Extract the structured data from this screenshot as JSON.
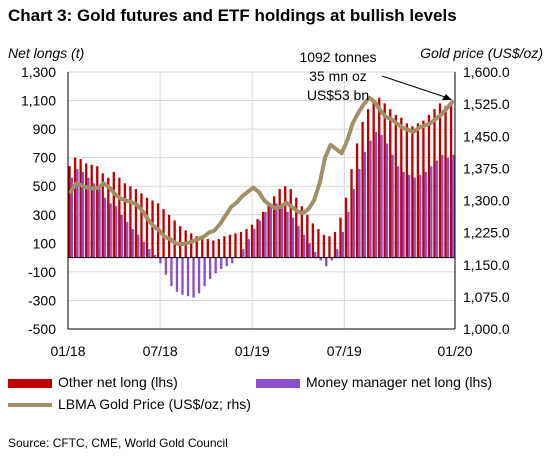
{
  "title": "Chart 3: Gold futures and ETF holdings at bullish levels",
  "source": "Source: CFTC, CME, World Gold Council",
  "colors": {
    "other_net_long": "#c00000",
    "money_manager": "#8a4fc9",
    "gold_price": "#a38f67",
    "grid": "#d6d6d6"
  },
  "chart_data": {
    "type": "bar",
    "title": "Chart 3: Gold futures and ETF holdings at bullish levels",
    "ylabel": "Net longs (t)",
    "y2label": "Gold price (US$/oz)",
    "ylim": [
      -500,
      1300
    ],
    "y2lim": [
      1000,
      1600
    ],
    "yticks": [
      "1,300",
      "1,100",
      "900",
      "700",
      "500",
      "300",
      "100",
      "-100",
      "-300",
      "-500"
    ],
    "y2ticks": [
      "1,600.0",
      "1,525.0",
      "1,450.0",
      "1,375.0",
      "1,300.0",
      "1,225.0",
      "1,150.0",
      "1,075.0",
      "1,000.0"
    ],
    "xticks": [
      "01/18",
      "07/18",
      "01/19",
      "07/19",
      "01/20"
    ],
    "x_start": "2018-01-01",
    "x_end": "2020-01-31",
    "grid": true,
    "annotation": [
      "1092 tonnes",
      "35 mn oz",
      "US$53 bn"
    ],
    "legend": {
      "other": "Other net long (lhs)",
      "mm": "Money manager net long (lhs)",
      "gold": "LBMA Gold Price (US$/oz; rhs)"
    },
    "series": [
      {
        "name": "Other net long (lhs)",
        "values": [
          640,
          700,
          690,
          660,
          650,
          640,
          590,
          560,
          600,
          560,
          520,
          500,
          480,
          450,
          420,
          400,
          380,
          340,
          300,
          260,
          220,
          190,
          170,
          150,
          140,
          130,
          120,
          130,
          150,
          160,
          170,
          180,
          200,
          230,
          270,
          320,
          370,
          430,
          480,
          500,
          480,
          420,
          360,
          300,
          240,
          200,
          160,
          150,
          180,
          280,
          420,
          620,
          800,
          950,
          1040,
          1100,
          1120,
          1080,
          1040,
          1000,
          980,
          940,
          920,
          940,
          960,
          1000,
          1040,
          1080,
          1060,
          1092
        ]
      },
      {
        "name": "Money manager net long (lhs)",
        "values": [
          560,
          620,
          600,
          560,
          520,
          480,
          420,
          380,
          360,
          300,
          250,
          200,
          160,
          110,
          60,
          20,
          -40,
          -120,
          -200,
          -240,
          -260,
          -270,
          -280,
          -250,
          -200,
          -150,
          -110,
          -80,
          -60,
          -40,
          0,
          60,
          130,
          200,
          260,
          320,
          350,
          380,
          360,
          320,
          280,
          220,
          160,
          100,
          40,
          -20,
          -60,
          -20,
          60,
          180,
          320,
          480,
          620,
          740,
          820,
          880,
          860,
          800,
          720,
          640,
          600,
          580,
          560,
          580,
          600,
          640,
          680,
          720,
          700,
          720
        ]
      },
      {
        "name": "LBMA Gold Price (US$/oz; rhs)",
        "values": [
          1320,
          1340,
          1335,
          1330,
          1328,
          1330,
          1340,
          1330,
          1315,
          1305,
          1300,
          1296,
          1290,
          1275,
          1255,
          1240,
          1230,
          1215,
          1210,
          1200,
          1198,
          1200,
          1205,
          1210,
          1215,
          1225,
          1230,
          1245,
          1265,
          1285,
          1295,
          1310,
          1320,
          1330,
          1320,
          1300,
          1290,
          1282,
          1285,
          1295,
          1285,
          1275,
          1270,
          1280,
          1300,
          1340,
          1400,
          1430,
          1420,
          1410,
          1440,
          1480,
          1505,
          1525,
          1540,
          1530,
          1510,
          1495,
          1490,
          1480,
          1470,
          1465,
          1460,
          1470,
          1475,
          1480,
          1490,
          1500,
          1515,
          1530
        ]
      }
    ]
  }
}
